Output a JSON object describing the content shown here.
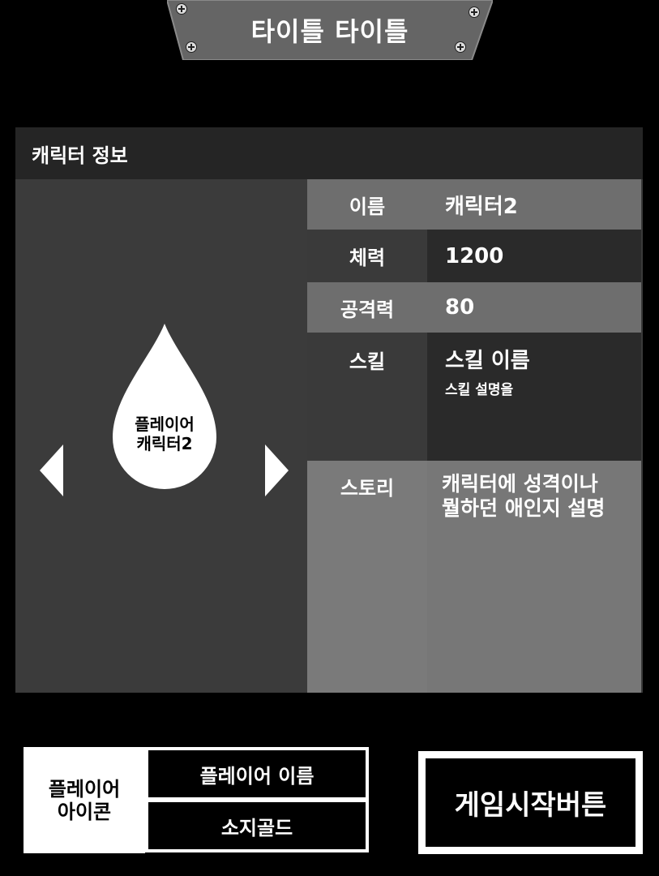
{
  "title": "타이틀 타이틀",
  "panel": {
    "header": "캐릭터 정보",
    "character_label_line1": "플레이어",
    "character_label_line2": "캐릭터2"
  },
  "info": {
    "name_key": "이름",
    "name_value": "캐릭터2",
    "hp_key": "체력",
    "hp_value": "1200",
    "attack_key": "공격력",
    "attack_value": "80",
    "skill_key": "스킬",
    "skill_name": "스킬 이름",
    "skill_desc": "스킬 설명을",
    "story_key": "스토리",
    "story_line1": "캐릭터에 성격이나",
    "story_line2": "뭘하던 애인지 설명"
  },
  "bottom": {
    "player_icon_line1": "플레이어",
    "player_icon_line2": "아이콘",
    "player_name": "플레이어 이름",
    "gold": "소지골드",
    "start_button": "게임시작버튼"
  },
  "icons": {
    "left_arrow": "left-arrow-icon",
    "right_arrow": "right-arrow-icon",
    "character": "droplet-icon"
  },
  "colors": {
    "background": "#000000",
    "panel": "#3a3a3a",
    "header": "#252525",
    "row_light": "#6e6e6e",
    "row_dark": "#2a2a2a"
  }
}
